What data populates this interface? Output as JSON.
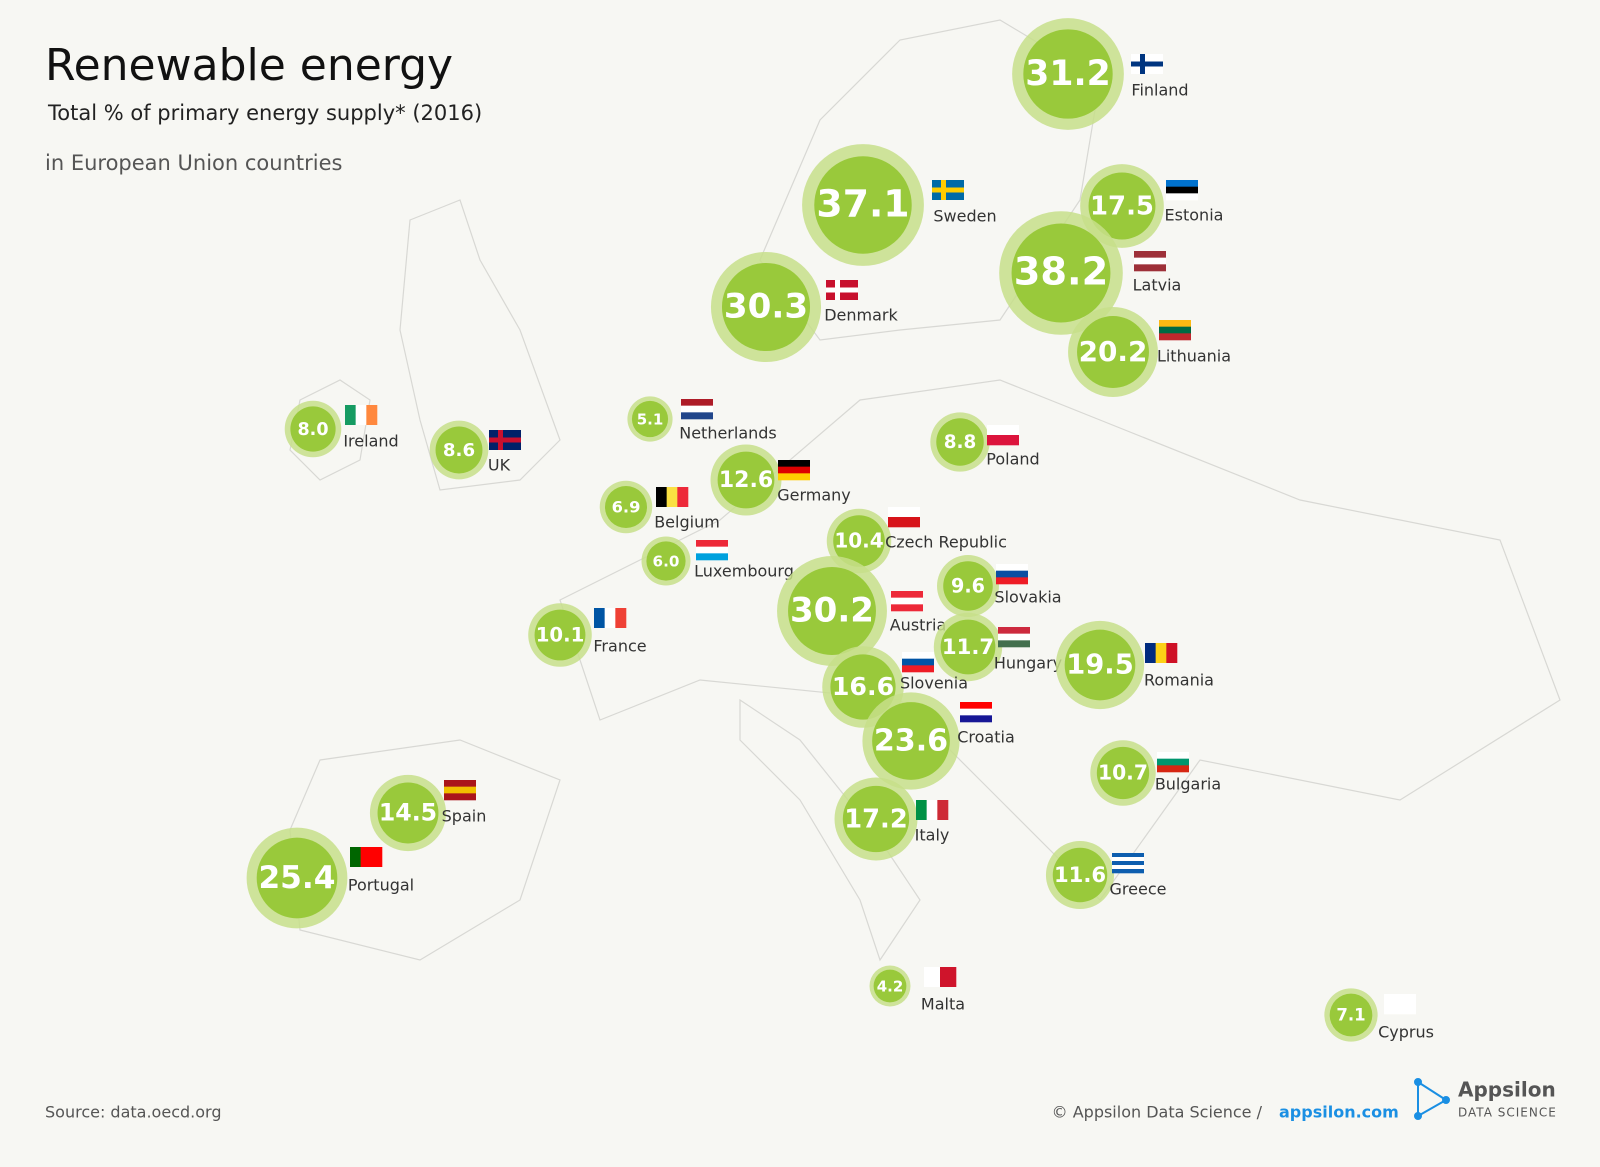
{
  "header": {
    "title": "Renewable energy",
    "subtitle": "Total % of primary energy supply* (2016)",
    "note": "in European Union countries"
  },
  "countries": [
    {
      "name": "Finland",
      "value": 31.2
    },
    {
      "name": "Sweden",
      "value": 37.1
    },
    {
      "name": "Estonia",
      "value": 17.5
    },
    {
      "name": "Latvia",
      "value": 38.2
    },
    {
      "name": "Denmark",
      "value": 30.3
    },
    {
      "name": "Lithuania",
      "value": 20.2
    },
    {
      "name": "Ireland",
      "value": 8,
      "value_label": "8.0"
    },
    {
      "name": "UK",
      "value": 8.6
    },
    {
      "name": "Netherlands",
      "value": 5.1
    },
    {
      "name": "Poland",
      "value": 8.8
    },
    {
      "name": "Germany",
      "value": 12.6
    },
    {
      "name": "Belgium",
      "value": 6.9
    },
    {
      "name": "Czech Republic",
      "value": 10.4
    },
    {
      "name": "Luxembourg",
      "value": 6,
      "value_label": "6.0"
    },
    {
      "name": "Slovakia",
      "value": 9.6
    },
    {
      "name": "Austria",
      "value": 30.2
    },
    {
      "name": "France",
      "value": 10.1
    },
    {
      "name": "Hungary",
      "value": 11.7
    },
    {
      "name": "Romania",
      "value": 19.5
    },
    {
      "name": "Slovenia",
      "value": 16.6
    },
    {
      "name": "Croatia",
      "value": 23.6
    },
    {
      "name": "Bulgaria",
      "value": 10.7
    },
    {
      "name": "Spain",
      "value": 14.5
    },
    {
      "name": "Italy",
      "value": 17.2
    },
    {
      "name": "Portugal",
      "value": 25.4
    },
    {
      "name": "Greece",
      "value": 11.6
    },
    {
      "name": "Malta",
      "value": 4.2
    },
    {
      "name": "Cyprus",
      "value": 7.1
    }
  ],
  "footer": {
    "source": "Source: data.oecd.org",
    "copyright": "© Appsilon Data Science /",
    "link": "appsilon.com",
    "logo_name": "Appsilon",
    "logo_tag": "DATA SCIENCE"
  }
}
